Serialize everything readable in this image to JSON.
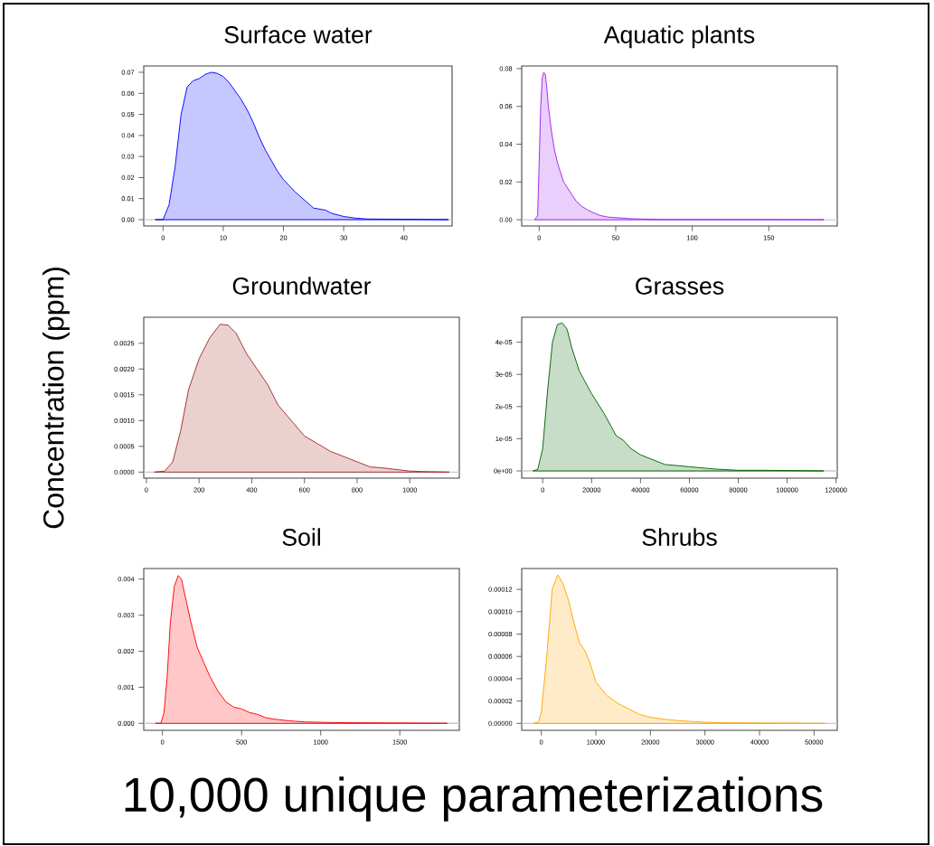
{
  "chart_data": [
    {
      "type": "area",
      "title": "Surface water",
      "xlim": [
        -3.2,
        48
      ],
      "ylim": [
        -0.003,
        0.073
      ],
      "xticks": [
        0,
        10,
        20,
        30,
        40
      ],
      "yticks": [
        {
          "value": 0,
          "label": "0.00"
        },
        0.01,
        0.02,
        0.03,
        0.04,
        0.05,
        0.06,
        0.07
      ],
      "ref_lines": [
        {
          "axis": "y",
          "value": 0,
          "color": "#c8c8c8"
        }
      ],
      "series": [
        {
          "color": "#0000ff",
          "x": [
            -1.3,
            0,
            1,
            2,
            3,
            4,
            5,
            6,
            7,
            8,
            9,
            10,
            11,
            12,
            13,
            14,
            15,
            16,
            17,
            18,
            19,
            20,
            22,
            24,
            25,
            27,
            28,
            30,
            32,
            34,
            40,
            47.4
          ],
          "values": [
            0,
            0,
            0.007,
            0.025,
            0.05,
            0.063,
            0.066,
            0.067,
            0.069,
            0.07,
            0.0695,
            0.068,
            0.065,
            0.061,
            0.057,
            0.052,
            0.046,
            0.039,
            0.033,
            0.028,
            0.023,
            0.019,
            0.013,
            0.008,
            0.0055,
            0.0045,
            0.003,
            0.0015,
            0.0007,
            0.0003,
            0.0002,
            0
          ]
        }
      ]
    },
    {
      "type": "area",
      "title": "Aquatic plants",
      "xlim": [
        -11.4,
        194.7
      ],
      "ylim": [
        -0.0033,
        0.0814
      ],
      "xticks": [
        0,
        50,
        100,
        150
      ],
      "yticks": [
        {
          "value": 0,
          "label": "0.00"
        },
        0.02,
        0.04,
        0.06,
        0.08
      ],
      "ref_lines": [
        {
          "axis": "y",
          "value": 0,
          "color": "#c8c8c8"
        }
      ],
      "series": [
        {
          "color": "#a020f0",
          "x": [
            -3,
            -1,
            0,
            1,
            2,
            3,
            4,
            5,
            6,
            8,
            10,
            12,
            14,
            16,
            20,
            24,
            28,
            32,
            36,
            40,
            45,
            50,
            60,
            70,
            80,
            186
          ],
          "values": [
            0,
            0.002,
            0.03,
            0.06,
            0.075,
            0.078,
            0.077,
            0.07,
            0.06,
            0.047,
            0.037,
            0.03,
            0.025,
            0.02,
            0.015,
            0.01,
            0.007,
            0.005,
            0.0035,
            0.0022,
            0.0014,
            0.0011,
            0.0005,
            0.0003,
            0.0001,
            0
          ]
        }
      ]
    },
    {
      "type": "area",
      "title": "Groundwater",
      "ylabel": "Concentration (ppm)",
      "xlim": [
        -10,
        1188
      ],
      "ylim": [
        -0.000117,
        0.003005
      ],
      "xticks": [
        0,
        200,
        400,
        600,
        800,
        1000
      ],
      "yticks": [
        {
          "value": 0,
          "label": "0.0000"
        },
        {
          "value": 0.0005,
          "label": "0.0005"
        },
        {
          "value": 0.001,
          "label": "0.0010"
        },
        {
          "value": 0.0015,
          "label": "0.0015"
        },
        {
          "value": 0.002,
          "label": "0.0020"
        },
        {
          "value": 0.0025,
          "label": "0.0025"
        }
      ],
      "ref_lines": [
        {
          "axis": "y",
          "value": 0,
          "color": "#c8c8c8"
        }
      ],
      "series": [
        {
          "color": "#a52a2a",
          "x": [
            30,
            70,
            100,
            130,
            160,
            200,
            240,
            280,
            310,
            340,
            380,
            420,
            460,
            500,
            550,
            600,
            650,
            700,
            750,
            800,
            850,
            900,
            950,
            1000,
            1050,
            1150
          ],
          "values": [
            0,
            2e-05,
            0.0002,
            0.0008,
            0.0016,
            0.0022,
            0.0026,
            0.00287,
            0.00285,
            0.0027,
            0.0023,
            0.002,
            0.0017,
            0.0013,
            0.001,
            0.0007,
            0.00055,
            0.0004,
            0.0003,
            0.0002,
            0.0001,
            8e-05,
            5e-05,
            2e-05,
            1e-05,
            0
          ]
        }
      ]
    },
    {
      "type": "area",
      "title": "Grasses",
      "xlim": [
        -8590,
        120500
      ],
      "ylim": [
        -2.24e-06,
        4.776e-05
      ],
      "xticks": [
        0,
        20000,
        40000,
        60000,
        80000,
        100000,
        120000
      ],
      "yticks": [
        {
          "value": 0,
          "label": "0e+00"
        },
        {
          "value": 1e-05,
          "label": "1e-05"
        },
        {
          "value": 2e-05,
          "label": "2e-05"
        },
        {
          "value": 3e-05,
          "label": "3e-05"
        },
        {
          "value": 4e-05,
          "label": "4e-05"
        }
      ],
      "ref_lines": [
        {
          "axis": "y",
          "value": 0,
          "color": "#c8c8c8"
        }
      ],
      "series": [
        {
          "color": "#006400",
          "x": [
            -4000,
            -2000,
            0,
            2000,
            4000,
            6000,
            8000,
            10000,
            12000,
            15000,
            20000,
            25000,
            30000,
            33000,
            36000,
            40000,
            45000,
            50000,
            60000,
            70000,
            80000,
            90000,
            115000
          ],
          "values": [
            0,
            5e-07,
            7e-06,
            2.5e-05,
            4e-05,
            4.55e-05,
            4.6e-05,
            4.4e-05,
            3.8e-05,
            3.1e-05,
            2.4e-05,
            1.8e-05,
            1.1e-05,
            9.5e-06,
            7e-06,
            5e-06,
            3.5e-06,
            2e-06,
            1.3e-06,
            6e-07,
            2e-07,
            2e-07,
            0
          ]
        }
      ]
    },
    {
      "type": "area",
      "title": "Soil",
      "xlabel": "10,000 unique parameterizations",
      "xlim": [
        -118,
        1876
      ],
      "ylim": [
        -0.000193,
        0.004293
      ],
      "xticks": [
        0,
        500,
        1000,
        1500
      ],
      "yticks": [
        {
          "value": 0,
          "label": "0.000"
        },
        0.001,
        0.002,
        0.003,
        0.004
      ],
      "ref_lines": [
        {
          "axis": "y",
          "value": 0,
          "color": "#c8c8c8"
        }
      ],
      "series": [
        {
          "color": "#ff0000",
          "x": [
            -45,
            -10,
            10,
            30,
            50,
            75,
            100,
            120,
            150,
            180,
            220,
            260,
            300,
            350,
            400,
            450,
            500,
            550,
            600,
            650,
            700,
            800,
            900,
            1100,
            1800
          ],
          "values": [
            0,
            0,
            0.0003,
            0.0013,
            0.0028,
            0.0038,
            0.0041,
            0.004,
            0.0034,
            0.0028,
            0.0021,
            0.0017,
            0.0013,
            0.0009,
            0.0006,
            0.00045,
            0.0004,
            0.0003,
            0.00025,
            0.00016,
            0.00012,
            7e-05,
            4e-05,
            2e-05,
            0
          ]
        }
      ]
    },
    {
      "type": "area",
      "title": "Shrubs",
      "xlim": [
        -3590,
        54250
      ],
      "ylim": [
        -6.2e-06,
        0.0001387
      ],
      "xticks": [
        0,
        10000,
        20000,
        30000,
        40000,
        50000
      ],
      "yticks": [
        {
          "value": 0,
          "label": "0.00000"
        },
        {
          "value": 2e-05,
          "label": "0.00002"
        },
        {
          "value": 4e-05,
          "label": "0.00004"
        },
        {
          "value": 6e-05,
          "label": "0.00006"
        },
        {
          "value": 8e-05,
          "label": "0.00008"
        },
        {
          "value": 0.0001,
          "label": "0.00010"
        },
        {
          "value": 0.00012,
          "label": "0.00012"
        }
      ],
      "ref_lines": [
        {
          "axis": "y",
          "value": 0,
          "color": "#c8c8c8"
        }
      ],
      "series": [
        {
          "color": "#ffa500",
          "x": [
            -1500,
            -500,
            0,
            1000,
            2000,
            3000,
            4000,
            5000,
            6000,
            7000,
            8000,
            9000,
            10000,
            12000,
            14000,
            16000,
            18000,
            20000,
            22000,
            25000,
            30000,
            33000,
            52000
          ],
          "values": [
            0,
            1e-06,
            1e-05,
            6e-05,
            0.00012,
            0.000133,
            0.000125,
            0.00011,
            9e-05,
            7.2e-05,
            6.5e-05,
            5.3e-05,
            3.7e-05,
            2.5e-05,
            1.8e-05,
            1.3e-05,
            8e-06,
            5.5e-06,
            4e-06,
            2.5e-06,
            1e-06,
            5e-07,
            0
          ]
        }
      ]
    }
  ]
}
